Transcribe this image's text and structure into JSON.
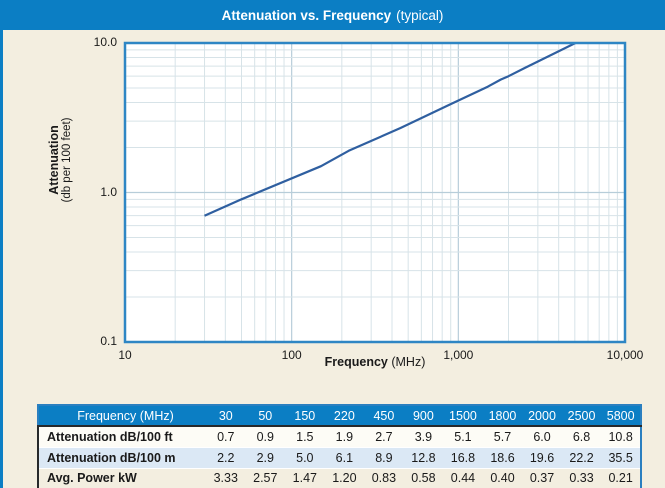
{
  "title": {
    "main": "Attenuation vs. Frequency",
    "suffix": "(typical)"
  },
  "chart_data": {
    "type": "line",
    "title": "Attenuation vs. Frequency (typical)",
    "xlabel": "Frequency",
    "xlabel_unit": "(MHz)",
    "ylabel": "Attenuation",
    "ylabel_unit": "(db per 100 feet)",
    "x_scale": "log",
    "y_scale": "log",
    "xlim": [
      10,
      10000
    ],
    "ylim": [
      0.1,
      10
    ],
    "x_tick_labels": [
      "10",
      "100",
      "1,000",
      "10,000"
    ],
    "y_tick_labels": [
      "10.0",
      "1.0",
      "0.1"
    ],
    "grid": true,
    "legend": "none",
    "x": [
      30,
      50,
      150,
      220,
      450,
      900,
      1500,
      1800,
      2000,
      2500,
      5800
    ],
    "y": [
      0.7,
      0.9,
      1.5,
      1.9,
      2.7,
      3.9,
      5.1,
      5.7,
      6.0,
      6.8,
      10.8
    ],
    "series_name": "Attenuation dB/100 ft"
  },
  "table": {
    "header_label": "Frequency (MHz)",
    "header_values": [
      "30",
      "50",
      "150",
      "220",
      "450",
      "900",
      "1500",
      "1800",
      "2000",
      "2500",
      "5800"
    ],
    "rows": [
      {
        "label": "Attenuation dB/100 ft",
        "values": [
          "0.7",
          "0.9",
          "1.5",
          "1.9",
          "2.7",
          "3.9",
          "5.1",
          "5.7",
          "6.0",
          "6.8",
          "10.8"
        ]
      },
      {
        "label": "Attenuation dB/100 m",
        "values": [
          "2.2",
          "2.9",
          "5.0",
          "6.1",
          "8.9",
          "12.8",
          "16.8",
          "18.6",
          "19.6",
          "22.2",
          "35.5"
        ]
      },
      {
        "label": "Avg. Power kW",
        "values": [
          "3.33",
          "2.57",
          "1.47",
          "1.20",
          "0.83",
          "0.58",
          "0.44",
          "0.40",
          "0.37",
          "0.33",
          "0.21"
        ]
      }
    ]
  },
  "colors": {
    "title_bar_bg": "#0b7ec4",
    "panel_bg": "#f3eee0",
    "plot_bg": "#ffffff",
    "plot_border": "#2e86c4",
    "grid_minor": "#d7e3e8",
    "grid_major": "#b7cdd9",
    "curve": "#2f5fa0",
    "row_alt_bg": "#dbe8f5",
    "text": "#1a1a1a"
  }
}
